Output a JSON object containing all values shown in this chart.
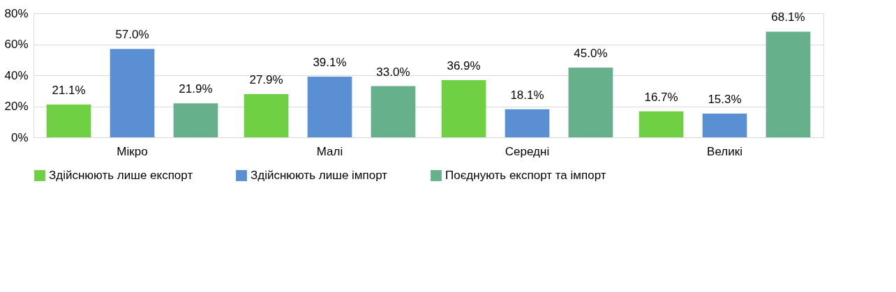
{
  "chart_data": {
    "type": "bar",
    "categories": [
      "Мікро",
      "Малі",
      "Середні",
      "Великі"
    ],
    "series": [
      {
        "name": "Здійснюють лише експорт",
        "color": "#70d044",
        "values": [
          21.1,
          27.9,
          36.9,
          16.7
        ]
      },
      {
        "name": "Здійснюють лише імпорт",
        "color": "#5b8fd4",
        "values": [
          57.0,
          39.1,
          18.1,
          15.3
        ]
      },
      {
        "name": "Поєднують експорт та імпорт",
        "color": "#66b08c",
        "values": [
          21.9,
          33.0,
          45.0,
          68.1
        ]
      }
    ],
    "value_labels": [
      [
        "21.1%",
        "27.9%",
        "36.9%",
        "16.7%"
      ],
      [
        "57.0%",
        "39.1%",
        "18.1%",
        "15.3%"
      ],
      [
        "21.9%",
        "33.0%",
        "45.0%",
        "68.1%"
      ]
    ],
    "ylim": [
      0,
      80
    ],
    "yticks": [
      {
        "value": 0,
        "label": "0%"
      },
      {
        "value": 20,
        "label": "20%"
      },
      {
        "value": 40,
        "label": "40%"
      },
      {
        "value": 60,
        "label": "60%"
      },
      {
        "value": 80,
        "label": "80%"
      }
    ],
    "grid": "y",
    "legend": "bottom"
  }
}
